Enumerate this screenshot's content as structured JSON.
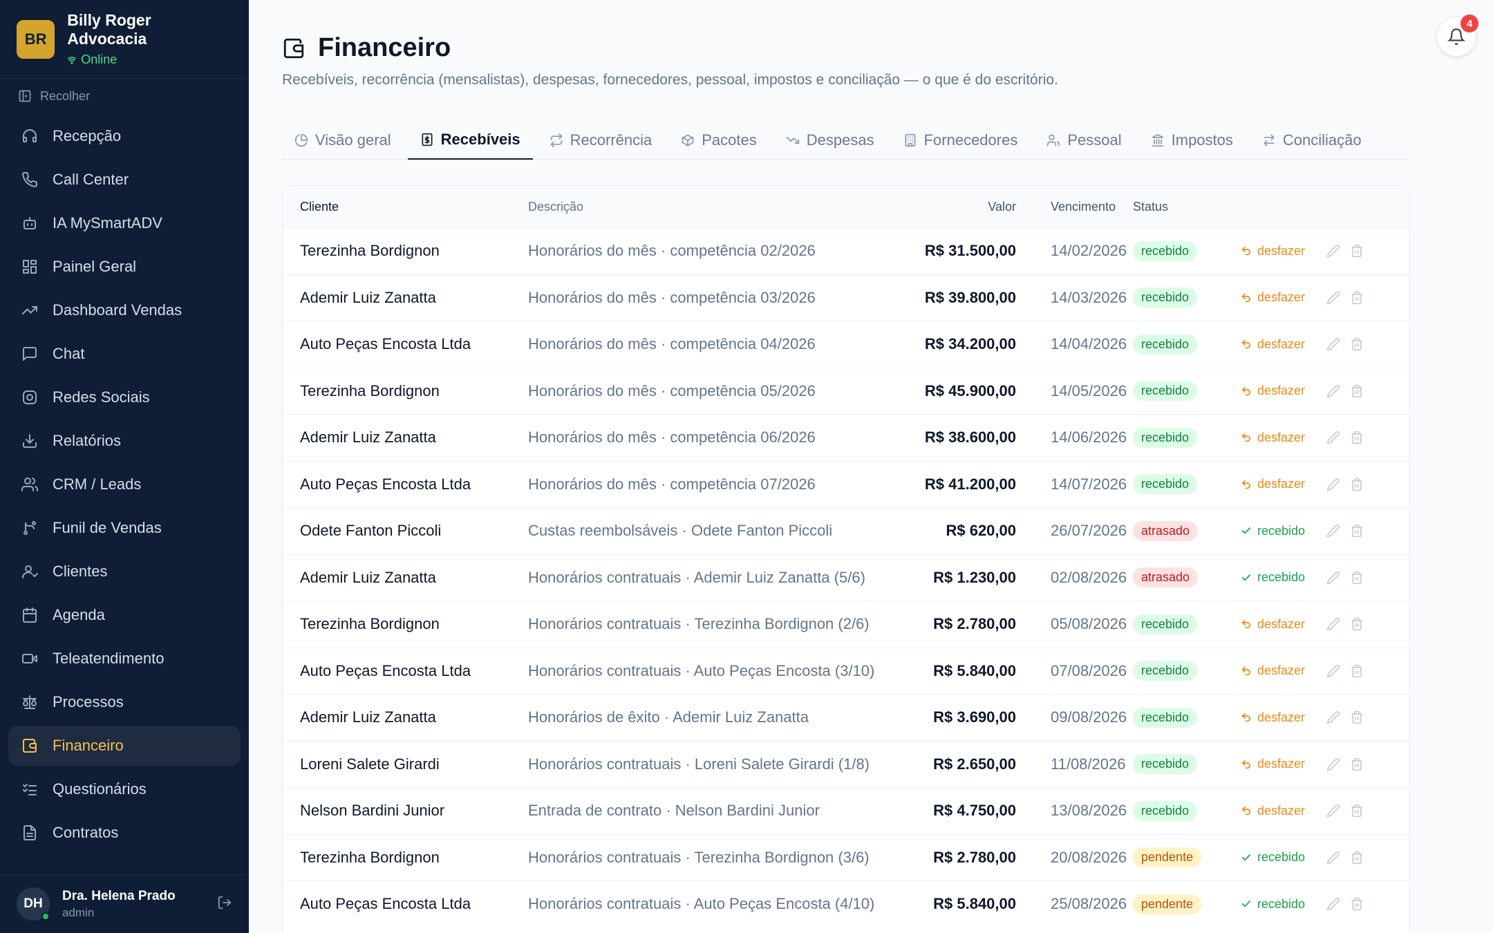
{
  "brand": {
    "initials": "BR",
    "name": "Billy Roger Advocacia",
    "status": "Online"
  },
  "sidebar": {
    "collapse_label": "Recolher",
    "items": [
      {
        "label": "Recepção",
        "icon": "headset-icon"
      },
      {
        "label": "Call Center",
        "icon": "phone-icon"
      },
      {
        "label": "IA MySmartADV",
        "icon": "bot-icon"
      },
      {
        "label": "Painel Geral",
        "icon": "grid-icon"
      },
      {
        "label": "Dashboard Vendas",
        "icon": "trending-up-icon"
      },
      {
        "label": "Chat",
        "icon": "chat-icon"
      },
      {
        "label": "Redes Sociais",
        "icon": "instagram-icon"
      },
      {
        "label": "Relatórios",
        "icon": "download-icon"
      },
      {
        "label": "CRM / Leads",
        "icon": "users-icon"
      },
      {
        "label": "Funil de Vendas",
        "icon": "funnel-icon"
      },
      {
        "label": "Clientes",
        "icon": "user-icon"
      },
      {
        "label": "Agenda",
        "icon": "calendar-icon"
      },
      {
        "label": "Teleatendimento",
        "icon": "video-icon"
      },
      {
        "label": "Processos",
        "icon": "scale-icon"
      },
      {
        "label": "Financeiro",
        "icon": "wallet-icon",
        "active": true
      },
      {
        "label": "Questionários",
        "icon": "checklist-icon"
      },
      {
        "label": "Contratos",
        "icon": "file-icon"
      }
    ]
  },
  "user": {
    "initials": "DH",
    "name": "Dra. Helena Prado",
    "role": "admin"
  },
  "notifications": {
    "count": "4"
  },
  "page": {
    "title": "Financeiro",
    "subtitle": "Recebíveis, recorrência (mensalistas), despesas, fornecedores, pessoal, impostos e conciliação — o que é do escritório."
  },
  "tabs": [
    {
      "label": "Visão geral",
      "icon": "pie-icon"
    },
    {
      "label": "Recebíveis",
      "icon": "receipt-icon",
      "active": true
    },
    {
      "label": "Recorrência",
      "icon": "repeat-icon"
    },
    {
      "label": "Pacotes",
      "icon": "package-icon"
    },
    {
      "label": "Despesas",
      "icon": "trending-down-icon"
    },
    {
      "label": "Fornecedores",
      "icon": "building-icon"
    },
    {
      "label": "Pessoal",
      "icon": "people-icon"
    },
    {
      "label": "Impostos",
      "icon": "bank-icon"
    },
    {
      "label": "Conciliação",
      "icon": "swap-icon"
    }
  ],
  "table": {
    "headers": {
      "cliente": "Cliente",
      "descricao": "Descrição",
      "valor": "Valor",
      "vencimento": "Vencimento",
      "status": "Status"
    },
    "rows": [
      {
        "cliente": "Terezinha Bordignon",
        "descricao": "Honorários do mês · competência 02/2026",
        "valor": "R$ 31.500,00",
        "vencimento": "14/02/2026",
        "status": "recebido",
        "action": "desfazer"
      },
      {
        "cliente": "Ademir Luiz Zanatta",
        "descricao": "Honorários do mês · competência 03/2026",
        "valor": "R$ 39.800,00",
        "vencimento": "14/03/2026",
        "status": "recebido",
        "action": "desfazer"
      },
      {
        "cliente": "Auto Peças Encosta Ltda",
        "descricao": "Honorários do mês · competência 04/2026",
        "valor": "R$ 34.200,00",
        "vencimento": "14/04/2026",
        "status": "recebido",
        "action": "desfazer"
      },
      {
        "cliente": "Terezinha Bordignon",
        "descricao": "Honorários do mês · competência 05/2026",
        "valor": "R$ 45.900,00",
        "vencimento": "14/05/2026",
        "status": "recebido",
        "action": "desfazer"
      },
      {
        "cliente": "Ademir Luiz Zanatta",
        "descricao": "Honorários do mês · competência 06/2026",
        "valor": "R$ 38.600,00",
        "vencimento": "14/06/2026",
        "status": "recebido",
        "action": "desfazer"
      },
      {
        "cliente": "Auto Peças Encosta Ltda",
        "descricao": "Honorários do mês · competência 07/2026",
        "valor": "R$ 41.200,00",
        "vencimento": "14/07/2026",
        "status": "recebido",
        "action": "desfazer"
      },
      {
        "cliente": "Odete Fanton Piccoli",
        "descricao": "Custas reembolsáveis · Odete Fanton Piccoli",
        "valor": "R$ 620,00",
        "vencimento": "26/07/2026",
        "status": "atrasado",
        "action": "recebido"
      },
      {
        "cliente": "Ademir Luiz Zanatta",
        "descricao": "Honorários contratuais · Ademir Luiz Zanatta (5/6)",
        "valor": "R$ 1.230,00",
        "vencimento": "02/08/2026",
        "status": "atrasado",
        "action": "recebido"
      },
      {
        "cliente": "Terezinha Bordignon",
        "descricao": "Honorários contratuais · Terezinha Bordignon (2/6)",
        "valor": "R$ 2.780,00",
        "vencimento": "05/08/2026",
        "status": "recebido",
        "action": "desfazer"
      },
      {
        "cliente": "Auto Peças Encosta Ltda",
        "descricao": "Honorários contratuais · Auto Peças Encosta (3/10)",
        "valor": "R$ 5.840,00",
        "vencimento": "07/08/2026",
        "status": "recebido",
        "action": "desfazer"
      },
      {
        "cliente": "Ademir Luiz Zanatta",
        "descricao": "Honorários de êxito · Ademir Luiz Zanatta",
        "valor": "R$ 3.690,00",
        "vencimento": "09/08/2026",
        "status": "recebido",
        "action": "desfazer"
      },
      {
        "cliente": "Loreni Salete Girardi",
        "descricao": "Honorários contratuais · Loreni Salete Girardi (1/8)",
        "valor": "R$ 2.650,00",
        "vencimento": "11/08/2026",
        "status": "recebido",
        "action": "desfazer"
      },
      {
        "cliente": "Nelson Bardini Junior",
        "descricao": "Entrada de contrato · Nelson Bardini Junior",
        "valor": "R$ 4.750,00",
        "vencimento": "13/08/2026",
        "status": "recebido",
        "action": "desfazer"
      },
      {
        "cliente": "Terezinha Bordignon",
        "descricao": "Honorários contratuais · Terezinha Bordignon (3/6)",
        "valor": "R$ 2.780,00",
        "vencimento": "20/08/2026",
        "status": "pendente",
        "action": "recebido"
      },
      {
        "cliente": "Auto Peças Encosta Ltda",
        "descricao": "Honorários contratuais · Auto Peças Encosta (4/10)",
        "valor": "R$ 5.840,00",
        "vencimento": "25/08/2026",
        "status": "pendente",
        "action": "recebido"
      }
    ]
  },
  "colors": {
    "sidebar_bg": "#0f1e36",
    "accent": "#f5c24a",
    "success": "#15803d",
    "danger": "#b91c1c",
    "warning": "#b45309",
    "undo": "#ea8a12"
  }
}
